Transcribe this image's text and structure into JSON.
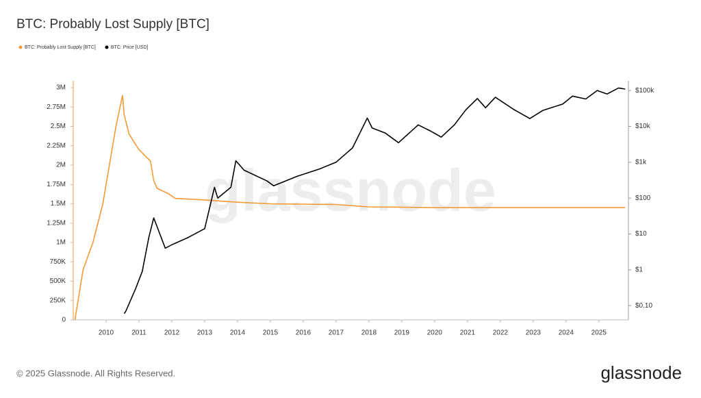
{
  "chart_data": {
    "type": "line",
    "title": "BTC: Probably Lost Supply [BTC]",
    "watermark": "glassnode",
    "footer": "© 2025 Glassnode. All Rights Reserved.",
    "brand": "glassnode",
    "xlim": [
      2009,
      2025.9
    ],
    "xticks": [
      2010,
      2011,
      2012,
      2013,
      2014,
      2015,
      2016,
      2017,
      2018,
      2019,
      2020,
      2021,
      2022,
      2023,
      2024,
      2025
    ],
    "ylim": [
      0,
      3000000
    ],
    "yticks": [
      0,
      {
        "value": 250000,
        "label": "250K"
      },
      {
        "value": 500000,
        "label": "500K"
      },
      {
        "value": 750000,
        "label": "750K"
      },
      {
        "value": 1000000,
        "label": "1M"
      },
      {
        "value": 1250000,
        "label": "1.25M"
      },
      {
        "value": 1500000,
        "label": "1.5M"
      },
      {
        "value": 1750000,
        "label": "1.75M"
      },
      {
        "value": 2000000,
        "label": "2M"
      },
      {
        "value": 2250000,
        "label": "2.25M"
      },
      {
        "value": 2500000,
        "label": "2.5M"
      },
      {
        "value": 2750000,
        "label": "2.75M"
      },
      {
        "value": 3000000,
        "label": "3M"
      }
    ],
    "y2lim": [
      0.04,
      120000
    ],
    "y2log": true,
    "y2ticks": [
      {
        "value": 0.1,
        "label": "$0.10"
      },
      {
        "value": 1,
        "label": "$1"
      },
      {
        "value": 10,
        "label": "$10"
      },
      {
        "value": 100,
        "label": "$100"
      },
      {
        "value": 1000,
        "label": "$1k"
      },
      {
        "value": 10000,
        "label": "$10k"
      },
      {
        "value": 100000,
        "label": "$100k"
      }
    ],
    "series": [
      {
        "name": "BTC: Probably Lost Supply [BTC]",
        "color": "#f39a34",
        "x": [
          2009.05,
          2009.3,
          2009.6,
          2009.9,
          2010.1,
          2010.3,
          2010.45,
          2010.5,
          2010.55,
          2010.7,
          2011.0,
          2011.35,
          2011.45,
          2011.55,
          2011.9,
          2012.1,
          2013.0,
          2014.0,
          2015.0,
          2017.0,
          2018.0,
          2020.0,
          2022.0,
          2025.8
        ],
        "values": [
          0,
          650000,
          1000000,
          1500000,
          2000000,
          2500000,
          2800000,
          2900000,
          2650000,
          2400000,
          2200000,
          2050000,
          1800000,
          1700000,
          1630000,
          1570000,
          1550000,
          1520000,
          1500000,
          1490000,
          1460000,
          1450000,
          1450000,
          1450000
        ]
      },
      {
        "name": "BTC: Price [USD]",
        "color": "#000000",
        "axis": "y2",
        "x": [
          2010.55,
          2010.6,
          2010.9,
          2011.1,
          2011.3,
          2011.45,
          2011.8,
          2012.0,
          2012.5,
          2013.0,
          2013.3,
          2013.4,
          2013.8,
          2013.95,
          2014.2,
          2014.9,
          2015.1,
          2015.8,
          2016.5,
          2017.0,
          2017.5,
          2017.95,
          2018.1,
          2018.5,
          2018.9,
          2019.5,
          2019.9,
          2020.2,
          2020.6,
          2020.95,
          2021.3,
          2021.55,
          2021.85,
          2022.4,
          2022.9,
          2023.3,
          2023.9,
          2024.2,
          2024.6,
          2024.95,
          2025.25,
          2025.6,
          2025.8
        ],
        "values": [
          0.06,
          0.07,
          0.3,
          0.9,
          8,
          28,
          4,
          5,
          8,
          14,
          200,
          100,
          200,
          1100,
          600,
          300,
          220,
          400,
          650,
          1000,
          2500,
          17000,
          9000,
          6500,
          3500,
          11000,
          7200,
          5000,
          11000,
          29000,
          60000,
          33000,
          65000,
          30000,
          16500,
          28000,
          42000,
          70000,
          58000,
          100000,
          80000,
          118000,
          110000
        ]
      }
    ]
  }
}
